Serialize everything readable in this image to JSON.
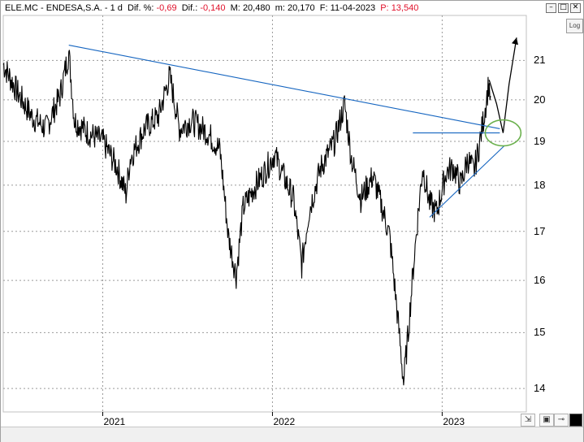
{
  "window": {
    "ticker": "ELE.MC - ENDESA,S.A.",
    "sep": " - ",
    "interval": "1 d",
    "dif_pct_label": "Dif. %:",
    "dif_pct_value": "-0,69",
    "dif_label": "Dif.:",
    "dif_value": "-0,140",
    "max_label": "M:",
    "max_value": "20,480",
    "min_label": "m:",
    "min_value": "20,170",
    "date_label": "F:",
    "date_value": "11-04-2023",
    "p_label": "P:",
    "p_value": "13,540",
    "minimize": "–",
    "maximize": "□",
    "close": "✕"
  },
  "log_button": "Log",
  "colors": {
    "price": "#000000",
    "trendline": "#1565c0",
    "ellipse": "#6ab04c",
    "grid": "#9a9a9a",
    "negative": "#e0102a"
  },
  "chart_data": {
    "type": "line",
    "title": "ELE.MC - ENDESA,S.A.",
    "xlabel": "",
    "ylabel": "",
    "y_scale": "log",
    "y_ticks": [
      14,
      15,
      16,
      17,
      18,
      19,
      20,
      21
    ],
    "x_ticks": [
      "2021",
      "2022",
      "2023"
    ],
    "x_range": [
      "2020-06",
      "2023-07"
    ],
    "ylim": [
      13.6,
      22.2
    ],
    "grid": true,
    "series": [
      {
        "values": [
          [
            "2020-06-01",
            20.9
          ],
          [
            "2020-07-01",
            20.2
          ],
          [
            "2020-08-01",
            19.6
          ],
          [
            "2020-09-01",
            19.3
          ],
          [
            "2020-10-01",
            20.1
          ],
          [
            "2020-10-20",
            21.2
          ],
          [
            "2020-11-01",
            19.5
          ],
          [
            "2020-12-01",
            19.2
          ],
          [
            "2021-01-01",
            19.0
          ],
          [
            "2021-02-01",
            18.4
          ],
          [
            "2021-02-20",
            17.8
          ],
          [
            "2021-03-01",
            18.6
          ],
          [
            "2021-04-01",
            19.3
          ],
          [
            "2021-05-01",
            19.6
          ],
          [
            "2021-05-25",
            20.6
          ],
          [
            "2021-06-15",
            19.3
          ],
          [
            "2021-07-10",
            19.5
          ],
          [
            "2021-08-15",
            19.2
          ],
          [
            "2021-09-10",
            18.8
          ],
          [
            "2021-09-28",
            16.9
          ],
          [
            "2021-10-15",
            16.1
          ],
          [
            "2021-10-30",
            17.5
          ],
          [
            "2021-11-20",
            17.9
          ],
          [
            "2021-12-15",
            18.3
          ],
          [
            "2022-01-05",
            18.7
          ],
          [
            "2022-01-25",
            18.2
          ],
          [
            "2022-02-15",
            17.7
          ],
          [
            "2022-03-05",
            16.3
          ],
          [
            "2022-03-20",
            17.4
          ],
          [
            "2022-04-15",
            18.4
          ],
          [
            "2022-05-15",
            19.0
          ],
          [
            "2022-06-05",
            19.9
          ],
          [
            "2022-06-20",
            18.6
          ],
          [
            "2022-07-10",
            17.7
          ],
          [
            "2022-08-05",
            18.2
          ],
          [
            "2022-08-25",
            17.5
          ],
          [
            "2022-09-10",
            16.9
          ],
          [
            "2022-09-25",
            15.5
          ],
          [
            "2022-10-10",
            14.1
          ],
          [
            "2022-10-20",
            15.0
          ],
          [
            "2022-11-05",
            16.8
          ],
          [
            "2022-11-20",
            18.4
          ],
          [
            "2022-12-05",
            17.6
          ],
          [
            "2022-12-20",
            17.4
          ],
          [
            "2023-01-10",
            18.3
          ],
          [
            "2023-01-25",
            18.4
          ],
          [
            "2023-02-10",
            18.0
          ],
          [
            "2023-02-25",
            18.6
          ],
          [
            "2023-03-10",
            18.3
          ],
          [
            "2023-03-20",
            18.8
          ],
          [
            "2023-04-01",
            19.6
          ],
          [
            "2023-04-11",
            20.4
          ],
          [
            "2023-04-15",
            20.1
          ]
        ]
      }
    ],
    "annotations": {
      "descending_trendline": [
        [
          "2020-10-20",
          21.4
        ],
        [
          "2023-05-05",
          19.3
        ]
      ],
      "horizontal_line": [
        [
          "2022-10-30",
          19.2
        ],
        [
          "2023-05-05",
          19.2
        ]
      ],
      "ascending_trendline": [
        [
          "2022-12-05",
          17.3
        ],
        [
          "2023-05-15",
          18.9
        ]
      ],
      "projection_path": [
        [
          "2023-04-12",
          20.5
        ],
        [
          "2023-04-28",
          19.9
        ],
        [
          "2023-05-12",
          19.2
        ],
        [
          "2023-05-25",
          20.4
        ],
        [
          "2023-06-10",
          21.6
        ]
      ],
      "ellipse_center": [
        "2023-05-12",
        19.2
      ]
    }
  }
}
